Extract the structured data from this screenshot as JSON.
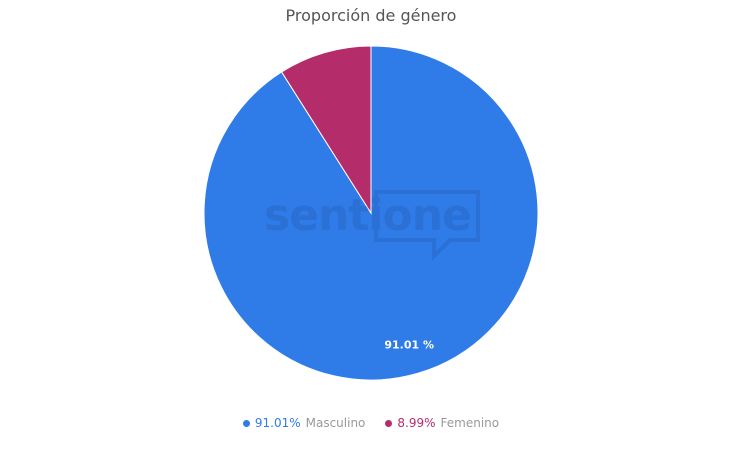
{
  "chart_data": {
    "type": "pie",
    "title": "Proporción de género",
    "slices": [
      {
        "name": "Masculino",
        "value": 91.01,
        "percent_label": "91.01%",
        "data_label": "91.01 %",
        "color": "#2f7be8"
      },
      {
        "name": "Femenino",
        "value": 8.99,
        "percent_label": "8.99%",
        "data_label": "",
        "color": "#b52c6b"
      }
    ],
    "legend_placement": "bottom",
    "watermark": "sentione"
  }
}
